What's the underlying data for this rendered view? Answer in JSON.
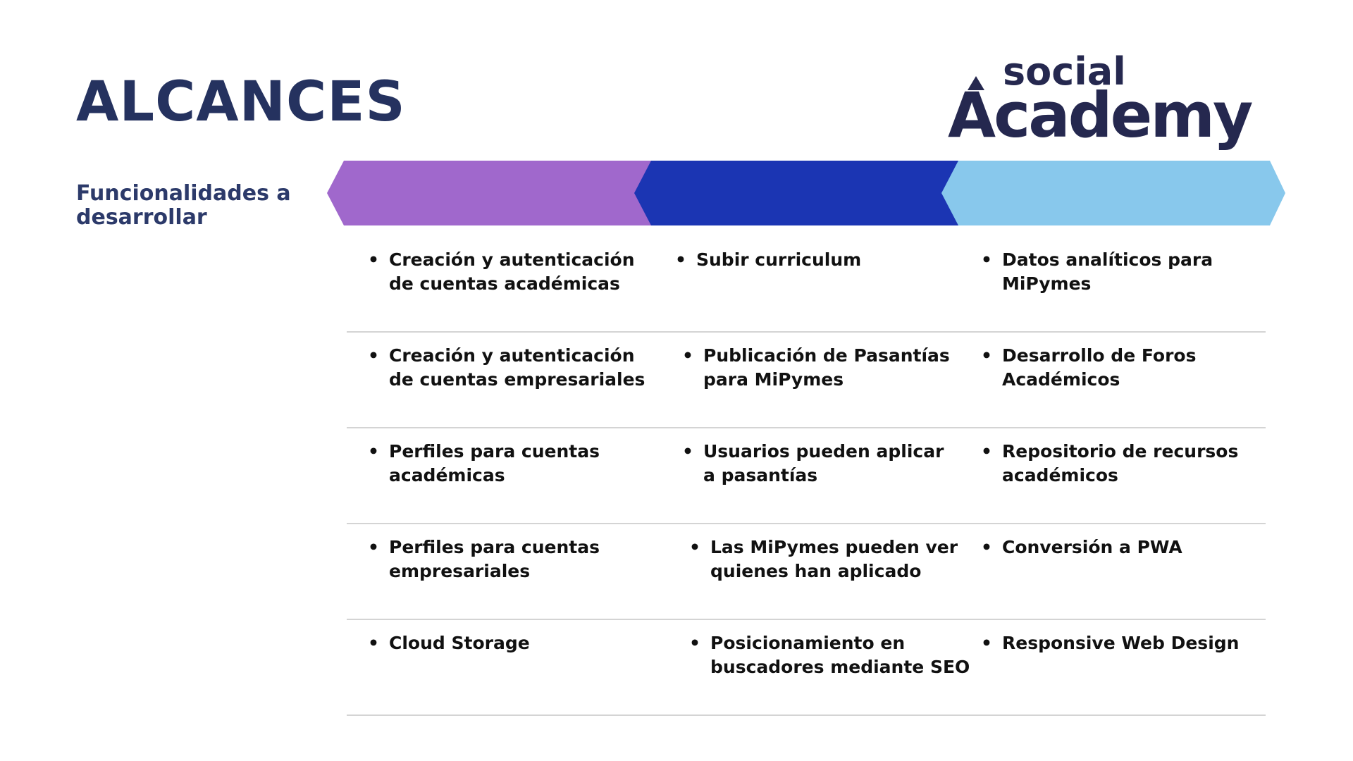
{
  "title": "ALCANCES",
  "logo": {
    "line1": "social",
    "line2": "Academy",
    "color": "#25284f"
  },
  "section_label": "Funcionalidades a\ndesarrollar",
  "bullet": "•",
  "phase_colors": [
    "#a068cc",
    "#1b35b3",
    "#88c8ec"
  ],
  "rows": [
    [
      "Creación y autenticación\nde cuentas académicas",
      "Subir curriculum",
      "Datos analíticos para\nMiPymes"
    ],
    [
      "Creación y autenticación\nde cuentas empresariales",
      "Publicación de Pasantías\npara MiPymes",
      "Desarrollo de Foros\nAcadémicos"
    ],
    [
      "Perfiles para cuentas\nacadémicas",
      "Usuarios pueden aplicar\na pasantías",
      "Repositorio de recursos\nacadémicos"
    ],
    [
      "Perfiles para cuentas\nempresariales",
      "Las MiPymes pueden ver\nquienes han aplicado",
      "Conversión a PWA"
    ],
    [
      "Cloud Storage",
      "Posicionamiento en\nbuscadores mediante SEO",
      "Responsive Web Design"
    ]
  ]
}
